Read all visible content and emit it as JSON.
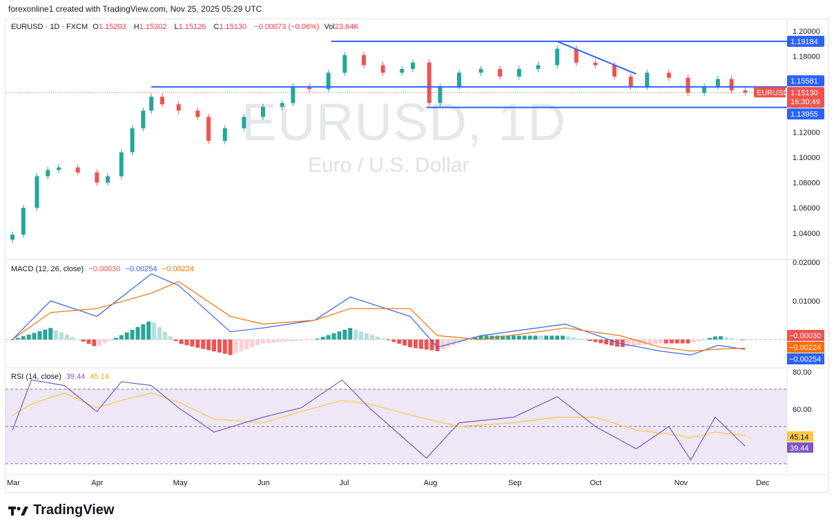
{
  "header": {
    "credit": "forexonline1 created with TradingView.com, Nov 25, 2025 05:29 UTC"
  },
  "legend": {
    "symbol": "EURUSD · 1D · FXCM",
    "o_label": "O",
    "o": "1.15203",
    "h_label": "H",
    "h": "1.15302",
    "l_label": "L",
    "l": "1.15126",
    "c_label": "C",
    "c": "1.15130",
    "change": "−0.00073 (−0.06%)",
    "vol_label": "Vol",
    "vol": "23.64K"
  },
  "watermark": {
    "title": "EURUSD, 1D",
    "subtitle": "Euro / U.S. Dollar"
  },
  "macd_legend": {
    "name": "MACD (12, 26, close)",
    "hist": "−0.00030",
    "macd": "−0.00254",
    "signal": "−0.00224"
  },
  "rsi_legend": {
    "name": "RSI (14, close)",
    "rsi": "39.44",
    "ma": "45.14"
  },
  "footer": {
    "brand": "TradingView"
  },
  "colors": {
    "up": "#26a69a",
    "down": "#ef5350",
    "level": "#2962ff",
    "macd": "#2962ff",
    "signal": "#ff6d00",
    "rsi": "#7e57c2",
    "rsi_ma": "#f7c948",
    "band": "#ede7f6"
  },
  "chart_data": [
    {
      "type": "candlestick",
      "pane": "price",
      "symbol": "EURUSD",
      "ylim": [
        1.03,
        1.205
      ],
      "yticks": [
        "1.20000",
        "1.18000",
        "1.12000",
        "1.10000",
        "1.08000",
        "1.06000",
        "1.04000"
      ],
      "xticks": [
        "Mar",
        "Apr",
        "May",
        "Jun",
        "Jul",
        "Aug",
        "Sep",
        "Oct",
        "Nov",
        "Dec"
      ],
      "levels": [
        {
          "value": 1.19184,
          "label": "1.19184",
          "from": "2025-06-26"
        },
        {
          "value": 1.15581,
          "label": "1.15581",
          "from": "2025-04-21"
        },
        {
          "value": 1.13955,
          "label": "1.13955",
          "from": "2025-07-31"
        }
      ],
      "trendline": [
        {
          "date": "2025-09-17",
          "value": 1.19184
        },
        {
          "date": "2025-10-16",
          "value": 1.166
        }
      ],
      "last": {
        "label": "EURUSD",
        "price": "1.15130",
        "countdown": "16:30:49"
      },
      "dates": [
        "2025-03-01",
        "2025-03-05",
        "2025-03-10",
        "2025-03-14",
        "2025-03-18",
        "2025-03-25",
        "2025-04-01",
        "2025-04-05",
        "2025-04-10",
        "2025-04-14",
        "2025-04-18",
        "2025-04-21",
        "2025-04-25",
        "2025-05-01",
        "2025-05-08",
        "2025-05-12",
        "2025-05-18",
        "2025-05-25",
        "2025-06-01",
        "2025-06-08",
        "2025-06-12",
        "2025-06-18",
        "2025-06-25",
        "2025-07-01",
        "2025-07-08",
        "2025-07-15",
        "2025-07-22",
        "2025-07-26",
        "2025-08-01",
        "2025-08-05",
        "2025-08-12",
        "2025-08-20",
        "2025-08-27",
        "2025-09-03",
        "2025-09-10",
        "2025-09-17",
        "2025-09-24",
        "2025-10-01",
        "2025-10-08",
        "2025-10-14",
        "2025-10-20",
        "2025-10-28",
        "2025-11-04",
        "2025-11-10",
        "2025-11-15",
        "2025-11-20",
        "2025-11-25"
      ],
      "close": [
        1.0388,
        1.06,
        1.085,
        1.09,
        1.092,
        1.088,
        1.08,
        1.085,
        1.104,
        1.123,
        1.137,
        1.148,
        1.142,
        1.137,
        1.132,
        1.113,
        1.123,
        1.132,
        1.14,
        1.143,
        1.156,
        1.154,
        1.167,
        1.181,
        1.173,
        1.167,
        1.17,
        1.175,
        1.143,
        1.156,
        1.167,
        1.17,
        1.164,
        1.17,
        1.173,
        1.186,
        1.175,
        1.173,
        1.164,
        1.156,
        1.167,
        1.163,
        1.151,
        1.156,
        1.162,
        1.153,
        1.1513
      ]
    },
    {
      "type": "line",
      "pane": "macd",
      "ylim": [
        -0.0045,
        0.0205
      ],
      "yticks": [
        "0.02000",
        "0.01000"
      ],
      "dates": [
        "2025-03-01",
        "2025-03-15",
        "2025-04-01",
        "2025-04-21",
        "2025-05-01",
        "2025-05-20",
        "2025-06-01",
        "2025-06-20",
        "2025-07-03",
        "2025-07-25",
        "2025-08-04",
        "2025-08-20",
        "2025-09-20",
        "2025-10-10",
        "2025-10-25",
        "2025-11-05",
        "2025-11-15",
        "2025-11-25"
      ],
      "series": [
        {
          "name": "MACD",
          "values": [
            0.0,
            0.01,
            0.006,
            0.017,
            0.014,
            0.002,
            0.003,
            0.005,
            0.011,
            0.006,
            -0.002,
            0.001,
            0.004,
            -0.001,
            -0.003,
            -0.004,
            -0.0015,
            -0.00254
          ]
        },
        {
          "name": "Signal",
          "values": [
            0.0,
            0.007,
            0.008,
            0.012,
            0.015,
            0.006,
            0.004,
            0.005,
            0.008,
            0.008,
            0.001,
            0.0,
            0.003,
            0.001,
            -0.002,
            -0.003,
            -0.0025,
            -0.00224
          ]
        }
      ],
      "labels": [
        "−0.00030",
        "−0.00224",
        "−0.00254"
      ]
    },
    {
      "type": "line",
      "pane": "rsi",
      "ylim": [
        22,
        82
      ],
      "yticks": [
        "80.00",
        "60.00"
      ],
      "bands": [
        70,
        50,
        30
      ],
      "dates": [
        "2025-03-01",
        "2025-03-08",
        "2025-03-20",
        "2025-04-01",
        "2025-04-10",
        "2025-04-21",
        "2025-05-01",
        "2025-05-14",
        "2025-06-01",
        "2025-06-15",
        "2025-06-30",
        "2025-07-10",
        "2025-07-31",
        "2025-08-12",
        "2025-09-01",
        "2025-09-17",
        "2025-10-01",
        "2025-10-16",
        "2025-10-28",
        "2025-11-05",
        "2025-11-14",
        "2025-11-25"
      ],
      "series": [
        {
          "name": "RSI",
          "values": [
            48,
            75,
            72,
            58,
            74,
            72,
            60,
            47,
            55,
            60,
            75,
            60,
            33,
            52,
            55,
            66,
            50,
            38,
            50,
            32,
            55,
            39.44
          ]
        },
        {
          "name": "RSI MA",
          "values": [
            56,
            62,
            68,
            60,
            64,
            68,
            63,
            54,
            52,
            58,
            64,
            62,
            54,
            50,
            52,
            55,
            55,
            48,
            46,
            44,
            47,
            45.14
          ]
        }
      ],
      "labels": [
        "45.14",
        "39.44"
      ]
    }
  ]
}
